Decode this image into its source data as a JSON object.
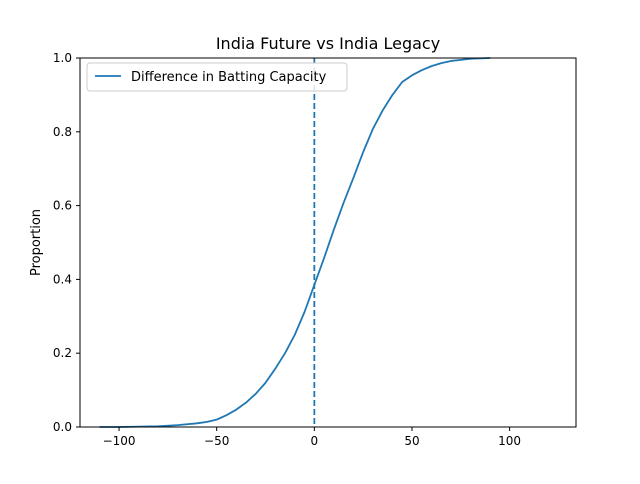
{
  "chart_data": {
    "type": "line",
    "title": "India Future vs India Legacy",
    "xlabel": "",
    "ylabel": "Proportion",
    "xlim": [
      -120,
      134
    ],
    "ylim": [
      0,
      1
    ],
    "xticks": [
      -100,
      -50,
      0,
      50,
      100
    ],
    "xtick_labels": [
      "−100",
      "−50",
      "0",
      "50",
      "100"
    ],
    "yticks": [
      0,
      0.2,
      0.4,
      0.6,
      0.8,
      1.0
    ],
    "ytick_labels": [
      "0.0",
      "0.2",
      "0.4",
      "0.6",
      "0.8",
      "1.0"
    ],
    "grid": false,
    "legend": {
      "placement": "top-left",
      "entries": [
        "Difference in Batting Capacity"
      ]
    },
    "series": [
      {
        "name": "Difference in Batting Capacity",
        "color": "#1f77b4",
        "x": [
          -110,
          -100,
          -90,
          -80,
          -70,
          -60,
          -55,
          -50,
          -45,
          -40,
          -35,
          -30,
          -25,
          -20,
          -15,
          -10,
          -5,
          0,
          5,
          10,
          15,
          20,
          25,
          30,
          35,
          40,
          45,
          50,
          55,
          60,
          65,
          70,
          75,
          80,
          85,
          90
        ],
        "y": [
          0.0,
          0.0,
          0.001,
          0.002,
          0.005,
          0.01,
          0.014,
          0.02,
          0.032,
          0.047,
          0.066,
          0.09,
          0.12,
          0.158,
          0.2,
          0.25,
          0.312,
          0.385,
          0.458,
          0.535,
          0.608,
          0.675,
          0.745,
          0.808,
          0.858,
          0.9,
          0.935,
          0.953,
          0.967,
          0.978,
          0.986,
          0.992,
          0.995,
          0.998,
          0.999,
          1.0
        ]
      }
    ],
    "vertical_line": {
      "x": 0,
      "style": "dashed",
      "color": "#1f77b4"
    }
  }
}
